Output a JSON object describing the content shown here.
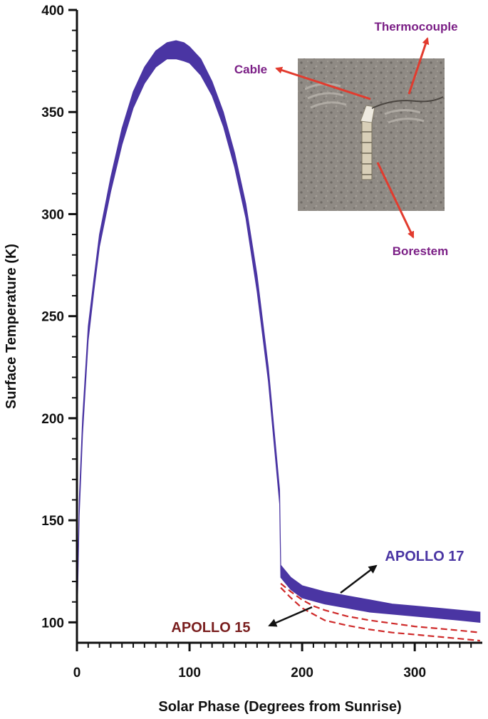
{
  "chart_data": {
    "type": "line",
    "title": "",
    "xlabel": "Solar Phase (Degrees from Sunrise)",
    "ylabel": "Surface Temperature (K)",
    "xlim": [
      0,
      360
    ],
    "ylim": [
      90,
      400
    ],
    "x_ticks": [
      0,
      100,
      200,
      300
    ],
    "y_ticks": [
      100,
      150,
      200,
      250,
      300,
      350,
      400
    ],
    "grid": false,
    "series": [
      {
        "name": "APOLLO 17",
        "color": "#4a35a3",
        "style": "band",
        "x": [
          0,
          2,
          5,
          10,
          15,
          20,
          30,
          40,
          50,
          60,
          70,
          80,
          88,
          95,
          100,
          110,
          120,
          130,
          140,
          150,
          160,
          170,
          175,
          180,
          181,
          190,
          200,
          220,
          240,
          260,
          280,
          300,
          320,
          340,
          358
        ],
        "upper": [
          100,
          160,
          200,
          245,
          268,
          290,
          318,
          342,
          360,
          372,
          380,
          384,
          385,
          384,
          382,
          376,
          365,
          350,
          330,
          305,
          270,
          225,
          195,
          165,
          128,
          122,
          118,
          115,
          113,
          111,
          109,
          108,
          107,
          106,
          105
        ],
        "lower": [
          96,
          152,
          192,
          238,
          262,
          284,
          311,
          334,
          352,
          364,
          372,
          376,
          376,
          375,
          374,
          368,
          358,
          343,
          323,
          298,
          262,
          218,
          188,
          158,
          122,
          116,
          112,
          109,
          107,
          105,
          104,
          103,
          102,
          101,
          100
        ]
      },
      {
        "name": "APOLLO 15",
        "color": "#cf2a2a",
        "style": "dashed",
        "lines": [
          {
            "x": [
              181,
              190,
              200,
              210,
              220,
              240,
              260,
              280,
              300,
              320,
              340,
              358
            ],
            "y": [
              119,
              115,
              111,
              108,
              106,
              103,
              101,
              99.5,
              98,
              97,
              96,
              95
            ]
          },
          {
            "x": [
              181,
              190,
              200,
              210,
              220,
              240,
              260,
              280,
              300,
              320,
              340,
              358
            ],
            "y": [
              117,
              112,
              107,
              104,
              101,
              98.5,
              96.5,
              95,
              94,
              93,
              92,
              91
            ]
          }
        ]
      }
    ]
  },
  "inset": {
    "callouts": {
      "thermocouple": "Thermocouple",
      "cable": "Cable",
      "borestem": "Borestem"
    }
  }
}
